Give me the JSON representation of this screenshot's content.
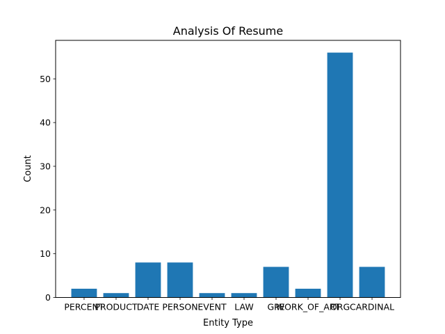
{
  "chart_data": {
    "type": "bar",
    "title": "Analysis Of Resume",
    "xlabel": "Entity Type",
    "ylabel": "Count",
    "categories": [
      "PERCENT",
      "PRODUCT",
      "DATE",
      "PERSON",
      "EVENT",
      "LAW",
      "GPE",
      "WORK_OF_ART",
      "ORG",
      "CARDINAL"
    ],
    "values": [
      2,
      1,
      8,
      8,
      1,
      1,
      7,
      2,
      56,
      7
    ],
    "ylim": [
      0,
      58.8
    ],
    "yticks": [
      0,
      10,
      20,
      30,
      40,
      50
    ],
    "bar_color": "#1f77b4",
    "grid": false,
    "legend": "none"
  }
}
